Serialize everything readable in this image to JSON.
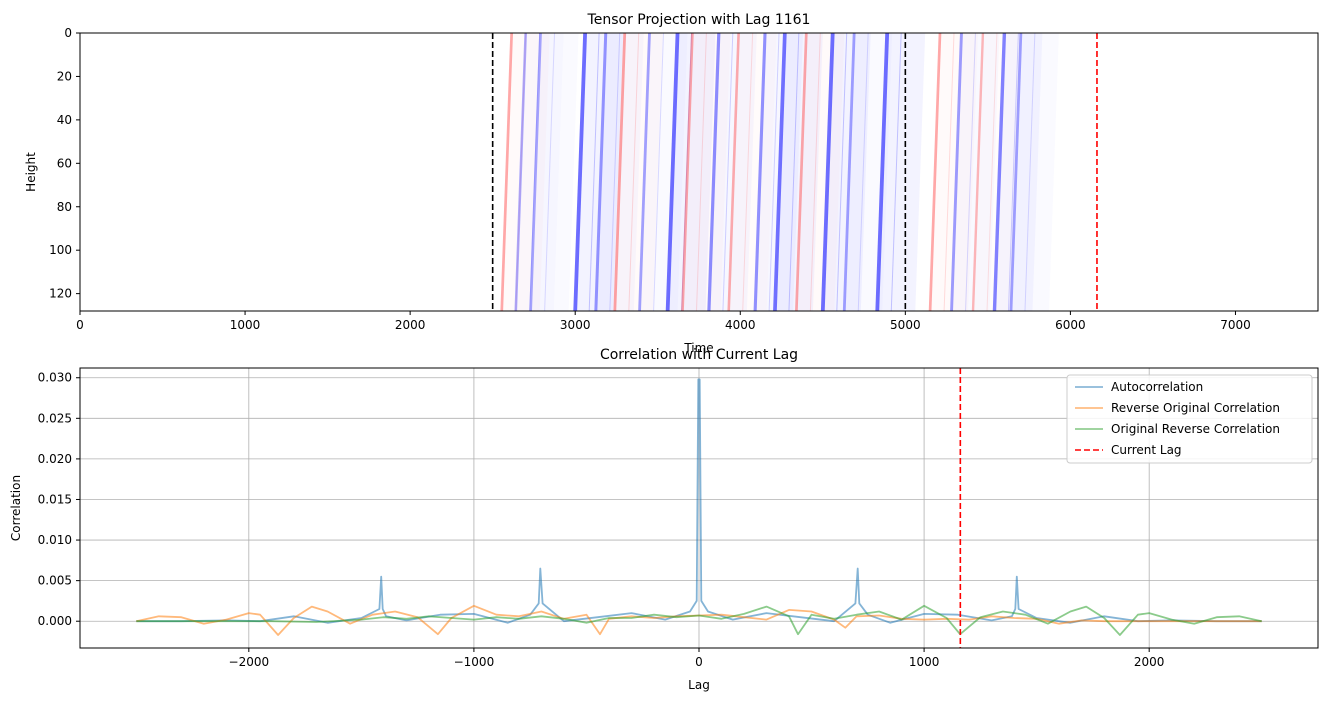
{
  "chart_data": [
    {
      "type": "heatmap",
      "title": "Tensor Projection with Lag 1161",
      "xlabel": "Time",
      "ylabel": "Height",
      "xlim": [
        0,
        7500
      ],
      "ylim": [
        128,
        0
      ],
      "xticks": [
        0,
        1000,
        2000,
        3000,
        4000,
        5000,
        6000,
        7000
      ],
      "yticks": [
        0,
        20,
        40,
        60,
        80,
        100,
        120
      ],
      "grid": false,
      "colormap": "bwr",
      "black_dashed_lines_x": [
        2500,
        5000
      ],
      "red_dashed_line_x": 6161,
      "stripes": [
        {
          "x_top": 2615,
          "x_bottom": 2555,
          "color": "red",
          "intensity": 0.35
        },
        {
          "x_top": 2700,
          "x_bottom": 2640,
          "color": "blue",
          "intensity": 0.3
        },
        {
          "x_top": 2790,
          "x_bottom": 2730,
          "color": "blue",
          "intensity": 0.35
        },
        {
          "x_top": 3060,
          "x_bottom": 3000,
          "color": "blue",
          "intensity": 0.9
        },
        {
          "x_top": 3185,
          "x_bottom": 3125,
          "color": "blue",
          "intensity": 0.5
        },
        {
          "x_top": 3300,
          "x_bottom": 3240,
          "color": "red",
          "intensity": 0.4
        },
        {
          "x_top": 3450,
          "x_bottom": 3390,
          "color": "blue",
          "intensity": 0.4
        },
        {
          "x_top": 3620,
          "x_bottom": 3560,
          "color": "blue",
          "intensity": 0.9
        },
        {
          "x_top": 3710,
          "x_bottom": 3650,
          "color": "red",
          "intensity": 0.35
        },
        {
          "x_top": 3870,
          "x_bottom": 3810,
          "color": "blue",
          "intensity": 0.6
        },
        {
          "x_top": 3990,
          "x_bottom": 3930,
          "color": "red",
          "intensity": 0.3
        },
        {
          "x_top": 4150,
          "x_bottom": 4090,
          "color": "blue",
          "intensity": 0.55
        },
        {
          "x_top": 4270,
          "x_bottom": 4210,
          "color": "blue",
          "intensity": 0.85
        },
        {
          "x_top": 4400,
          "x_bottom": 4340,
          "color": "red",
          "intensity": 0.35
        },
        {
          "x_top": 4560,
          "x_bottom": 4500,
          "color": "blue",
          "intensity": 0.9
        },
        {
          "x_top": 4690,
          "x_bottom": 4630,
          "color": "blue",
          "intensity": 0.4
        },
        {
          "x_top": 4890,
          "x_bottom": 4830,
          "color": "blue",
          "intensity": 0.9
        },
        {
          "x_top": 5210,
          "x_bottom": 5150,
          "color": "red",
          "intensity": 0.35
        },
        {
          "x_top": 5340,
          "x_bottom": 5280,
          "color": "blue",
          "intensity": 0.45
        },
        {
          "x_top": 5470,
          "x_bottom": 5410,
          "color": "red",
          "intensity": 0.2
        },
        {
          "x_top": 5600,
          "x_bottom": 5540,
          "color": "blue",
          "intensity": 0.7
        },
        {
          "x_top": 5700,
          "x_bottom": 5640,
          "color": "blue",
          "intensity": 0.4
        }
      ]
    },
    {
      "type": "line",
      "title": "Correlation with Current Lag",
      "xlabel": "Lag",
      "ylabel": "Correlation",
      "xlim": [
        -2750,
        2750
      ],
      "ylim": [
        -0.0033,
        0.0312
      ],
      "xticks": [
        -2000,
        -1000,
        0,
        1000,
        2000
      ],
      "xtick_labels": [
        "−2000",
        "−1000",
        "0",
        "1000",
        "2000"
      ],
      "yticks": [
        0.0,
        0.005,
        0.01,
        0.015,
        0.02,
        0.025,
        0.03
      ],
      "ytick_labels": [
        "0.000",
        "0.005",
        "0.010",
        "0.015",
        "0.020",
        "0.025",
        "0.030"
      ],
      "grid": true,
      "legend_position": "top-right",
      "current_lag": 1161,
      "series": [
        {
          "name": "Autocorrelation",
          "color": "#1f77b4",
          "x": [
            -2500,
            -2300,
            -2100,
            -1950,
            -1800,
            -1650,
            -1500,
            -1420,
            -1412,
            -1405,
            -1390,
            -1300,
            -1150,
            -1000,
            -850,
            -750,
            -712,
            -705,
            -695,
            -600,
            -450,
            -300,
            -150,
            -40,
            -10,
            -3,
            0,
            3,
            10,
            40,
            150,
            300,
            450,
            600,
            695,
            705,
            712,
            750,
            850,
            1000,
            1150,
            1300,
            1390,
            1405,
            1412,
            1420,
            1500,
            1650,
            1800,
            1950,
            2100,
            2300,
            2500
          ],
          "y": [
            0.0,
            0.0,
            0.0001,
            0.0,
            0.0006,
            -0.0002,
            0.0004,
            0.0015,
            0.0055,
            0.0015,
            0.0006,
            0.0001,
            0.0008,
            0.0009,
            -0.0002,
            0.0008,
            0.0022,
            0.0065,
            0.0022,
            0.0,
            0.0005,
            0.001,
            0.0002,
            0.0012,
            0.0025,
            0.0298,
            0.0298,
            0.0298,
            0.0025,
            0.0012,
            0.0002,
            0.001,
            0.0005,
            0.0,
            0.0022,
            0.0065,
            0.0022,
            0.0008,
            -0.0002,
            0.0009,
            0.0008,
            0.0001,
            0.0006,
            0.0015,
            0.0055,
            0.0015,
            0.0004,
            -0.0002,
            0.0006,
            0.0,
            0.0001,
            0.0,
            0.0
          ]
        },
        {
          "name": "Reverse Original Correlation",
          "color": "#ff7f0e",
          "x": [
            -2500,
            -2400,
            -2300,
            -2200,
            -2100,
            -2000,
            -1950,
            -1870,
            -1800,
            -1720,
            -1650,
            -1550,
            -1450,
            -1350,
            -1250,
            -1160,
            -1100,
            -1000,
            -900,
            -800,
            -700,
            -600,
            -500,
            -440,
            -400,
            -300,
            -200,
            -100,
            0,
            100,
            200,
            300,
            400,
            500,
            600,
            650,
            700,
            800,
            900,
            1000,
            1100,
            1200,
            1300,
            1400,
            1500,
            1600,
            1700,
            1800,
            1900,
            2000,
            2100,
            2200,
            2300,
            2400,
            2500
          ],
          "y": [
            0.0,
            0.0006,
            0.0005,
            -0.0003,
            0.0002,
            0.001,
            0.0008,
            -0.0017,
            0.0004,
            0.0018,
            0.0012,
            -0.0003,
            0.0008,
            0.0012,
            0.0005,
            -0.0016,
            0.0004,
            0.0019,
            0.0008,
            0.0006,
            0.0012,
            0.0003,
            0.0008,
            -0.0016,
            0.0003,
            0.0006,
            0.0004,
            0.0006,
            0.0007,
            0.0008,
            0.0005,
            0.0002,
            0.0014,
            0.0012,
            0.0002,
            -0.0008,
            0.0006,
            0.0007,
            0.0003,
            0.0002,
            0.0003,
            0.0002,
            0.0006,
            0.0004,
            0.0003,
            -0.0003,
            0.0001,
            0.0,
            0.0,
            0.0,
            0.0,
            0.0,
            0.0,
            0.0,
            0.0
          ]
        },
        {
          "name": "Original Reverse Correlation",
          "color": "#2ca02c",
          "x": [
            -2500,
            -2300,
            -2100,
            -1900,
            -1700,
            -1500,
            -1400,
            -1300,
            -1200,
            -1100,
            -1000,
            -900,
            -800,
            -700,
            -600,
            -500,
            -400,
            -300,
            -200,
            -100,
            0,
            100,
            200,
            300,
            400,
            440,
            500,
            600,
            700,
            800,
            900,
            1000,
            1100,
            1160,
            1250,
            1350,
            1450,
            1550,
            1650,
            1720,
            1800,
            1870,
            1950,
            2000,
            2100,
            2200,
            2300,
            2400,
            2500
          ],
          "y": [
            0.0,
            0.0,
            0.0,
            0.0,
            -0.0001,
            0.0002,
            0.0005,
            0.0003,
            0.0006,
            0.0004,
            0.0002,
            0.0005,
            0.0003,
            0.0006,
            0.0003,
            -0.0002,
            0.0004,
            0.0004,
            0.0008,
            0.0005,
            0.0007,
            0.0003,
            0.0009,
            0.0018,
            0.0006,
            -0.0016,
            0.0008,
            0.0003,
            0.0008,
            0.0012,
            0.0002,
            0.0019,
            0.0004,
            -0.0016,
            0.0005,
            0.0012,
            0.0008,
            -0.0003,
            0.0012,
            0.0018,
            0.0004,
            -0.0017,
            0.0008,
            0.001,
            0.0002,
            -0.0003,
            0.0005,
            0.0006,
            0.0
          ]
        },
        {
          "name": "Current Lag",
          "color": "#ff0000",
          "style": "dashed",
          "x": [
            1161,
            1161
          ],
          "y": [
            -0.0033,
            0.0312
          ]
        }
      ]
    }
  ]
}
